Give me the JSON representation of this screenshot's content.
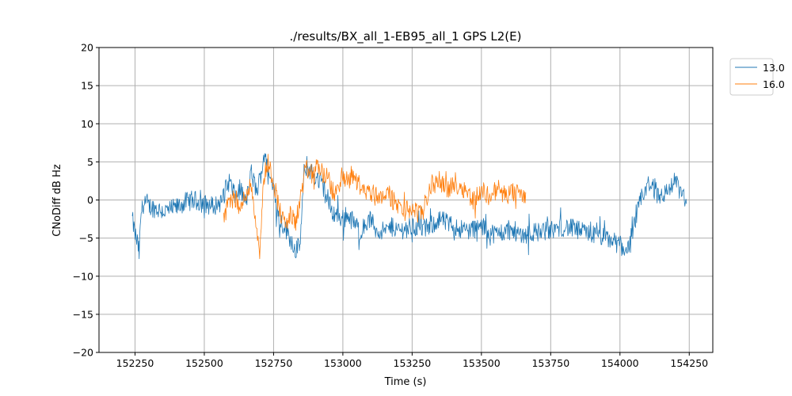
{
  "chart_data": {
    "type": "line",
    "title": "./results/BX_all_1-EB95_all_1 GPS L2(E)",
    "xlabel": "Time (s)",
    "ylabel": "CNoDiff dB Hz",
    "xlim": [
      152120,
      154335
    ],
    "ylim": [
      -20,
      20
    ],
    "xticks": [
      152250,
      152500,
      152750,
      153000,
      153250,
      153500,
      153750,
      154000,
      154250
    ],
    "yticks": [
      -20,
      -15,
      -10,
      -5,
      0,
      5,
      10,
      15,
      20
    ],
    "grid": true,
    "legend_placement": "outside-top-right",
    "series": [
      {
        "name": "13.0",
        "color": "#1f77b4",
        "x": [
          152240,
          152250,
          152258,
          152265,
          152272,
          152280,
          152300,
          152330,
          152360,
          152400,
          152430,
          152460,
          152500,
          152530,
          152560,
          152590,
          152610,
          152630,
          152650,
          152670,
          152690,
          152710,
          152720,
          152730,
          152750,
          152770,
          152790,
          152810,
          152830,
          152845,
          152860,
          152870,
          152880,
          152900,
          152920,
          152940,
          152960,
          152980,
          153000,
          153020,
          153040,
          153060,
          153080,
          153100,
          153120,
          153150,
          153180,
          153200,
          153250,
          153300,
          153350,
          153400,
          153450,
          153500,
          153550,
          153600,
          153650,
          153700,
          153750,
          153800,
          153850,
          153900,
          153950,
          153980,
          154000,
          154020,
          154040,
          154060,
          154080,
          154100,
          154120,
          154150,
          154180,
          154200,
          154220,
          154240
        ],
        "y": [
          -2.5,
          -4.5,
          -5.5,
          -7.0,
          -1.5,
          -0.5,
          -0.8,
          -1.2,
          -1.5,
          -1.0,
          -0.3,
          0.0,
          -0.5,
          -0.8,
          -0.3,
          2.5,
          0.5,
          1.5,
          -0.5,
          3.5,
          1.0,
          4.5,
          6.5,
          3.0,
          2.0,
          -2.5,
          -3.5,
          -5.0,
          -6.5,
          -6.0,
          3.0,
          4.5,
          4.0,
          3.0,
          2.5,
          0.5,
          -1.5,
          -2.0,
          -2.5,
          -2.0,
          -3.0,
          -4.0,
          -3.5,
          -2.5,
          -4.0,
          -4.2,
          -3.5,
          -4.0,
          -3.5,
          -3.8,
          -2.5,
          -3.5,
          -4.0,
          -3.5,
          -4.5,
          -4.0,
          -4.5,
          -4.2,
          -4.0,
          -3.5,
          -4.0,
          -4.5,
          -5.0,
          -5.5,
          -6.0,
          -6.5,
          -5.5,
          -2.0,
          0.5,
          2.0,
          1.5,
          0.5,
          1.5,
          2.5,
          1.0,
          -0.5
        ]
      },
      {
        "name": "16.0",
        "color": "#ff7f0e",
        "x": [
          152570,
          152590,
          152610,
          152630,
          152650,
          152670,
          152690,
          152700,
          152715,
          152730,
          152750,
          152770,
          152790,
          152810,
          152830,
          152850,
          152870,
          152890,
          152910,
          152930,
          152950,
          152970,
          152990,
          153010,
          153040,
          153070,
          153100,
          153130,
          153160,
          153190,
          153220,
          153250,
          153280,
          153300,
          153320,
          153350,
          153380,
          153410,
          153440,
          153470,
          153500,
          153530,
          153560,
          153590,
          153620,
          153650,
          153660
        ],
        "y": [
          -2.0,
          -0.5,
          0.5,
          -1.5,
          1.0,
          2.0,
          -4.0,
          -6.5,
          3.0,
          5.0,
          2.5,
          -1.0,
          -3.5,
          -2.0,
          -3.0,
          1.0,
          4.0,
          3.5,
          4.5,
          3.5,
          2.5,
          0.5,
          2.5,
          2.5,
          3.0,
          1.5,
          1.0,
          0.5,
          1.0,
          -0.5,
          -1.5,
          -1.0,
          -2.0,
          0.0,
          2.0,
          2.5,
          1.5,
          2.0,
          1.5,
          0.0,
          1.0,
          0.5,
          1.5,
          0.5,
          1.0,
          0.5,
          1.0
        ]
      }
    ]
  }
}
